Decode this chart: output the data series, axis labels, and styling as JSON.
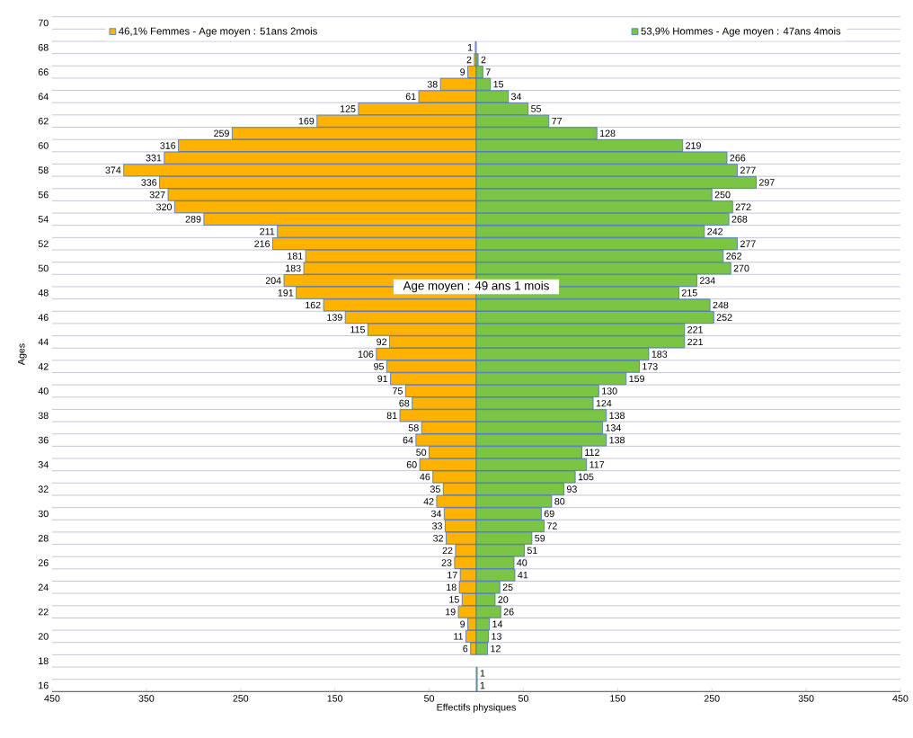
{
  "chart_data": {
    "type": "bar",
    "orientation": "horizontal",
    "xlabel": "Effectifs physiques",
    "ylabel": "Ages",
    "categories": [
      "70",
      null,
      "68",
      null,
      "66",
      null,
      "64",
      null,
      "62",
      null,
      "60",
      null,
      "58",
      null,
      "56",
      null,
      "54",
      null,
      "52",
      null,
      "50",
      null,
      "48",
      null,
      "46",
      null,
      "44",
      null,
      "42",
      null,
      "40",
      null,
      "38",
      null,
      "36",
      null,
      "34",
      null,
      "32",
      null,
      "30",
      null,
      "28",
      null,
      "26",
      null,
      "24",
      null,
      "22",
      null,
      "20",
      null,
      "18",
      null,
      "16"
    ],
    "series": [
      {
        "name": "46,1% Femmes - Age moyen : 51ans 2mois",
        "color": "#ffb300",
        "values": [
          null,
          null,
          1,
          2,
          9,
          38,
          61,
          125,
          169,
          259,
          316,
          331,
          374,
          336,
          327,
          320,
          289,
          211,
          216,
          181,
          183,
          204,
          191,
          162,
          139,
          115,
          92,
          106,
          95,
          91,
          75,
          68,
          81,
          58,
          64,
          50,
          60,
          46,
          35,
          42,
          34,
          33,
          32,
          22,
          23,
          17,
          18,
          15,
          19,
          9,
          11,
          6,
          null,
          null,
          null
        ],
        "base": [
          null,
          null,
          -1,
          -2,
          -9,
          -38,
          -61,
          -125,
          -169,
          -259,
          -316,
          -331,
          -374,
          -336,
          -327,
          -320,
          -289,
          -211,
          -216,
          -181,
          -183,
          -204,
          -191,
          -162,
          -139,
          -115,
          -92,
          -106,
          -95,
          -91,
          -75,
          -68,
          -81,
          -58,
          -64,
          -50,
          -60,
          -46,
          -35,
          -42,
          -34,
          -33,
          -32,
          -22,
          -23,
          -17,
          -18,
          -15,
          -19,
          -9,
          -11,
          -6,
          null,
          null,
          null
        ]
      },
      {
        "name": "53,9% Hommes - Age moyen : 47ans 4mois",
        "color": "#7cc443",
        "values": [
          null,
          null,
          null,
          2,
          7,
          15,
          34,
          55,
          77,
          128,
          219,
          266,
          277,
          297,
          250,
          272,
          268,
          242,
          277,
          262,
          270,
          234,
          215,
          248,
          252,
          221,
          221,
          183,
          173,
          159,
          130,
          124,
          138,
          134,
          138,
          112,
          117,
          105,
          93,
          80,
          69,
          72,
          59,
          51,
          40,
          41,
          25,
          20,
          26,
          14,
          13,
          12,
          null,
          1,
          1
        ]
      }
    ],
    "xlim": [
      -450,
      450
    ],
    "xticks": [
      {
        "value": -450,
        "label": "450"
      },
      {
        "value": -350,
        "label": "350"
      },
      {
        "value": -250,
        "label": "250"
      },
      {
        "value": -150,
        "label": "150"
      },
      {
        "value": -50,
        "label": "50"
      },
      50,
      150,
      250,
      350,
      450
    ],
    "grid": "y",
    "legend": "top",
    "data_labels": true,
    "annotations": [
      "Age moyen : 49 ans 1 mois"
    ]
  }
}
